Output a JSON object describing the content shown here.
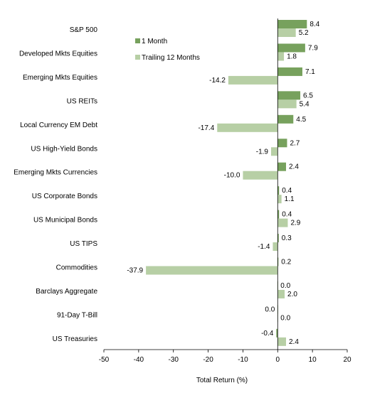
{
  "chart_data": {
    "type": "bar",
    "orientation": "horizontal",
    "categories": [
      "S&P 500",
      "Developed Mkts Equities",
      "Emerging Mkts Equities",
      "US REITs",
      "Local Currency EM Debt",
      "US High-Yield Bonds",
      "Emerging Mkts Currencies",
      "US Corporate Bonds",
      "US Municipal Bonds",
      "US TIPS",
      "Commodities",
      "Barclays Aggregate",
      "91-Day T-Bill",
      "US Treasuries"
    ],
    "series": [
      {
        "name": "1 Month",
        "color": "#77a15d",
        "values": [
          8.4,
          7.9,
          7.1,
          6.5,
          4.5,
          2.7,
          2.4,
          0.4,
          0.4,
          0.3,
          0.2,
          0.0,
          0.0,
          -0.4
        ],
        "labels": [
          "8.4",
          "7.9",
          "7.1",
          "6.5",
          "4.5",
          "2.7",
          "2.4",
          "0.4",
          "0.4",
          "0.3",
          "0.2",
          "0.0",
          "0.0",
          "-0.4"
        ]
      },
      {
        "name": "Trailing 12 Months",
        "color": "#b7cfa5",
        "values": [
          5.2,
          1.8,
          -14.2,
          5.4,
          -17.4,
          -1.9,
          -10.0,
          1.1,
          2.9,
          -1.4,
          -37.9,
          2.0,
          0.0,
          2.4
        ],
        "labels": [
          "5.2",
          "1.8",
          "-14.2",
          "5.4",
          "-17.4",
          "-1.9",
          "-10.0",
          "1.1",
          "2.9",
          "-1.4",
          "-37.9",
          "2.0",
          "0.0",
          "2.4"
        ]
      }
    ],
    "xlabel": "Total Return (%)",
    "xlim": [
      -50,
      20
    ],
    "xticks": [
      -50,
      -40,
      -30,
      -20,
      -10,
      0,
      10,
      20
    ],
    "xtick_labels": [
      "-50",
      "-40",
      "-30",
      "-20",
      "-10",
      "0",
      "10",
      "20"
    ],
    "grid": false,
    "legend_position": "top-left"
  }
}
